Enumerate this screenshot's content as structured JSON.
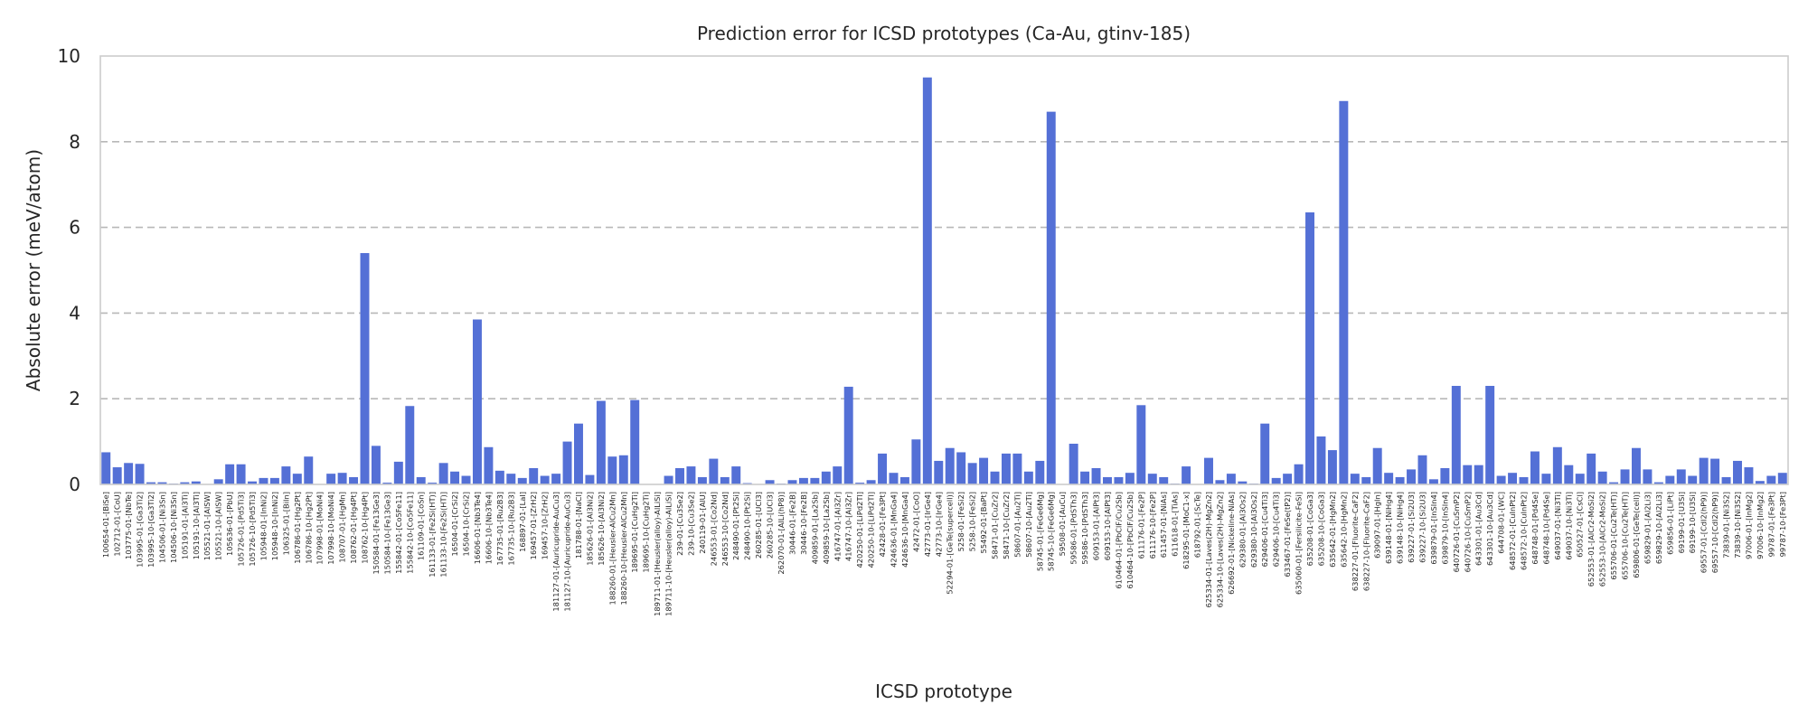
{
  "chart_data": {
    "type": "bar",
    "title": "Prediction error for ICSD prototypes (Ca-Au, gtinv-185)",
    "xlabel": "ICSD prototype",
    "ylabel": "Absolute error (meV/atom)",
    "ylim": [
      0,
      10
    ],
    "yticks": [
      "0",
      "2",
      "4",
      "6",
      "8",
      "10"
    ],
    "grid": "y-dashed",
    "bar_color": "#5470d6",
    "categories": [
      "100654-01-[BiSe]",
      "102712-01-[CoU]",
      "103775-01-[NbTe]",
      "103995-01-[Ga3Ti2]",
      "103995-10-[Ga3Ti2]",
      "104506-01-[Ni3Sn]",
      "104506-10-[Ni3Sn]",
      "105191-01-[Al3Ti]",
      "105191-10-[Al3Ti]",
      "105521-01-[AlSW]",
      "105521-10-[AlSW]",
      "105636-01-[PbU]",
      "105726-01-[Pd5Ti3]",
      "105726-10-[Pd5Ti3]",
      "105948-01-[InNi2]",
      "105948-10-[InNi2]",
      "106325-01-[BiIn]",
      "106786-01-[Hg2Pt]",
      "106786-10-[Hg2Pt]",
      "107998-01-[MoNi4]",
      "107998-10-[MoNi4]",
      "108707-01-[HgMn]",
      "108762-01-[Hg4Pt]",
      "108762-10-[Hg4Pt]",
      "150584-01-[Fe13Ge3]",
      "150584-10-[Fe13Ge3]",
      "155842-01-[Co5Fe11]",
      "155842-10-[Co5Fe11]",
      "161109-01-[CoSn]",
      "161133-01-[Fe2Si(HT)]",
      "161133-10-[Fe2Si(HT)]",
      "16504-01-[CrSi2]",
      "16504-10-[CrSi2]",
      "16606-01-[Nb3Te4]",
      "16606-10-[Nb3Te4]",
      "167735-01-[Ru2B3]",
      "167735-10-[Ru2B3]",
      "168897-01-[LaI]",
      "169457-01-[ZrH2]",
      "169457-10-[ZrH2]",
      "181127-01-[Auricupride-AuCu3]",
      "181127-10-[Auricupride-AuCu3]",
      "181788-01-[NaCl]",
      "185626-01-[Al3Ni2]",
      "185626-10-[Al3Ni2]",
      "188260-01-[Heusler-AlCu2Mn]",
      "188260-10-[Heusler-AlCu2Mn]",
      "189695-01-[CuHg2Ti]",
      "189695-10-[CuHg2Ti]",
      "189711-01-[Heusler(alloy)-AlLiSi]",
      "189711-10-[Heusler(alloy)-AlLiSi]",
      "239-01-[Cu3Se2]",
      "239-10-[Cu3Se2]",
      "240119-01-[AlU]",
      "246553-01-[Co2Nd]",
      "246553-10-[Co2Nd]",
      "248490-01-[Pt2Si]",
      "248490-10-[Pt2Si]",
      "260285-01-[UCl3]",
      "260285-10-[UCl3]",
      "262070-01-[AlLi(hP8)]",
      "30446-01-[Fe2B]",
      "30446-10-[Fe2B]",
      "409859-01-[La2Sb]",
      "409859-10-[La2Sb]",
      "416747-01-[Al3Zr]",
      "416747-10-[Al3Zr]",
      "420250-01-[LiPd2Tl]",
      "420250-10-[LiPd2Tl]",
      "42428-01-[Fe3Pt]",
      "424636-01-[MnGa4]",
      "424636-10-[MnGa4]",
      "42472-01-[CoO]",
      "42773-01-[IrGe4]",
      "42773-10-[IrGe4]",
      "52294-01-[GeTe(supercell)]",
      "5258-01-[FeSi2]",
      "5258-10-[FeSi2]",
      "55492-01-[BaPt]",
      "58471-01-[CuZr2]",
      "58471-10-[CuZr2]",
      "58607-01-[Au2Ti]",
      "58607-10-[Au2Ti]",
      "58745-01-[FeGe6Mg]",
      "58745-10-[FeGe6Mg]",
      "59508-01-[AuCu]",
      "59586-01-[PdSTh3]",
      "59586-10-[PdSTh3]",
      "609153-01-[AlPt3]",
      "609153-10-[AlPt3]",
      "610464-01-[PbClF/Cu2Sb]",
      "610464-10-[PbClF/Cu2Sb]",
      "611176-01-[Fe2P]",
      "611176-10-[Fe2P]",
      "611457-01-[NiAs]",
      "611618-01-[TiAs]",
      "618295-01-[MoC1-x]",
      "618792-01-[ScTe]",
      "625334-01-[Laves(2H)-MgZn2]",
      "625334-10-[Laves(2H)-MgZn2]",
      "626692-01-[Nickeline-NiAs]",
      "629380-01-[Al3Os2]",
      "629380-10-[Al3Os2]",
      "629406-01-[Cu4Ti3]",
      "629406-10-[Cu4Ti3]",
      "633467-01-[FeSe(tP2)]",
      "635060-01-[Fersilicite-FeSi]",
      "635208-01-[CoGa3]",
      "635208-10-[CoGa3]",
      "635642-01-[HgMn2]",
      "635642-10-[HgMn2]",
      "638227-01-[Fluorite-CaF2]",
      "638227-10-[Fluorite-CaF2]",
      "639097-01-[HgIn]",
      "639148-01-[NiHg4]",
      "639148-10-[NiHg4]",
      "639227-01-[Si2U3]",
      "639227-10-[Si2U3]",
      "639879-01-[InSIn4]",
      "639879-10-[InSIn4]",
      "640726-01-[CuSmP2]",
      "640726-10-[CuSmP2]",
      "643301-01-[Au3Cd]",
      "643301-10-[Au3Cd]",
      "644708-01-[WC]",
      "648572-01-[CuInPt2]",
      "648572-10-[CuInPt2]",
      "648748-01-[Pd4Se]",
      "648748-10-[Pd4Se]",
      "649037-01-[Ni3Ti]",
      "649037-10-[Ni3Ti]",
      "650527-01-[CsCl]",
      "652553-01-[AlCr2-MoSi2]",
      "652553-10-[AlCr2-MoSi2]",
      "655706-01-[Cu2Te(HT)]",
      "655706-10-[Cu2Te(HT)]",
      "659806-01-[GeTe(cell)]",
      "659829-01-[Al2Li3]",
      "659829-10-[Al2Li3]",
      "659856-01-[LiPt]",
      "69199-01-[U3Si]",
      "69199-10-[U3Si]",
      "69557-01-[CdI2(hP9)]",
      "69557-10-[CdI2(hP9)]",
      "73839-01-[Ni3S2]",
      "73839-10-[Ni3S2]",
      "97006-01-[InMg2]",
      "97006-10-[InMg2]",
      "99787-01-[Fe3Pt]",
      "99787-10-[Fe3Pt]"
    ],
    "values": [
      0.75,
      0.4,
      0.5,
      0.48,
      0.05,
      0.05,
      0.02,
      0.05,
      0.07,
      0.0,
      0.12,
      0.47,
      0.47,
      0.07,
      0.15,
      0.15,
      0.42,
      0.25,
      0.65,
      0.0,
      0.25,
      0.27,
      0.17,
      5.4,
      0.9,
      0.04,
      0.53,
      1.83,
      0.17,
      0.04,
      0.5,
      0.3,
      0.2,
      3.85,
      0.87,
      0.32,
      0.25,
      0.15,
      0.38,
      0.2,
      0.25,
      1.0,
      1.42,
      0.22,
      1.95,
      0.65,
      0.68,
      1.97,
      0.0,
      0.0,
      0.2,
      0.38,
      0.42,
      0.17,
      0.6,
      0.17,
      0.42,
      0.03,
      0.0,
      0.1,
      0.02,
      0.1,
      0.15,
      0.15,
      0.3,
      0.42,
      2.28,
      0.04,
      0.1,
      0.72,
      0.27,
      0.17,
      1.05,
      9.5,
      0.55,
      0.85,
      0.75,
      0.5,
      0.62,
      0.3,
      0.72,
      0.72,
      0.3,
      0.55,
      8.7,
      0.0,
      0.95,
      0.3,
      0.38,
      0.17,
      0.17,
      0.27,
      1.85,
      0.25,
      0.17,
      0.02,
      0.42,
      0.0,
      0.62,
      0.1,
      0.25,
      0.07,
      0.02,
      1.42,
      0.15,
      0.25,
      0.47,
      6.35,
      1.12,
      0.8,
      8.95,
      0.25,
      0.17,
      0.85,
      0.27,
      0.17,
      0.35,
      0.68,
      0.12,
      0.38,
      2.3,
      0.45,
      0.45,
      2.3,
      0.2,
      0.27,
      0.17,
      0.77,
      0.25,
      0.87,
      0.45,
      0.25,
      0.72,
      0.3,
      0.05,
      0.35,
      0.85,
      0.35,
      0.05,
      0.2,
      0.35,
      0.2,
      0.62,
      0.6,
      0.17,
      0.55,
      0.4,
      0.08,
      0.2,
      0.27
    ]
  }
}
